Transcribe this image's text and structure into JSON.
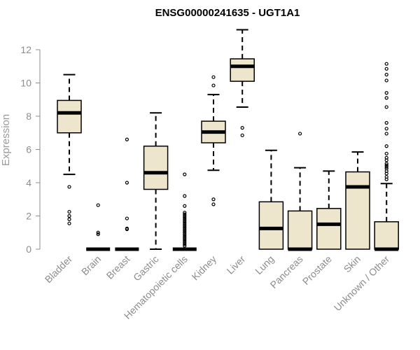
{
  "chart_data": {
    "type": "boxplot",
    "title": "ENSG00000241635 - UGT1A1",
    "xlabel": "",
    "ylabel": "Expression",
    "ylim": [
      0,
      12.6
    ],
    "yticks": [
      0,
      2,
      4,
      6,
      8,
      10,
      12
    ],
    "colors": {
      "box_fill": "#ede6cd",
      "stroke": "#000000",
      "axis": "#8c8c8c"
    },
    "categories": [
      "Bladder",
      "Brain",
      "Breast",
      "Gastric",
      "Hematopoietic cells",
      "Kidney",
      "Liver",
      "Lung",
      "Pancreas",
      "Prostate",
      "Skin",
      "Unknown / Other"
    ],
    "boxes": [
      {
        "q1": 7.0,
        "median": 8.2,
        "q3": 8.95,
        "whisker_low": 4.5,
        "whisker_high": 10.5,
        "outliers": [
          3.75,
          2.25,
          2.0,
          1.8,
          1.55
        ]
      },
      {
        "q1": 0.0,
        "median": 0.0,
        "q3": 0.0,
        "whisker_low": 0.0,
        "whisker_high": 0.0,
        "outliers": [
          2.65,
          1.0,
          0.9
        ]
      },
      {
        "q1": 0.0,
        "median": 0.0,
        "q3": 0.0,
        "whisker_low": 0.0,
        "whisker_high": 0.0,
        "outliers": [
          6.6,
          4.0,
          1.85,
          1.25,
          1.2
        ]
      },
      {
        "q1": 3.6,
        "median": 4.6,
        "q3": 6.2,
        "whisker_low": 0.0,
        "whisker_high": 8.2,
        "outliers": []
      },
      {
        "q1": 0.0,
        "median": 0.0,
        "q3": 0.0,
        "whisker_low": 0.0,
        "whisker_high": 0.0,
        "outliers": [
          4.5,
          3.2,
          2.6,
          2.2,
          2.1,
          2.0,
          1.9,
          1.8,
          1.7,
          1.6,
          1.5,
          1.4,
          1.3,
          1.2,
          1.1,
          1.0,
          0.9,
          0.8,
          0.7,
          0.6,
          0.5,
          0.4,
          0.3,
          0.2
        ]
      },
      {
        "q1": 6.4,
        "median": 7.05,
        "q3": 7.7,
        "whisker_low": 4.75,
        "whisker_high": 9.3,
        "outliers": [
          10.35,
          9.85,
          3.0,
          2.7
        ]
      },
      {
        "q1": 10.1,
        "median": 11.0,
        "q3": 11.45,
        "whisker_low": 8.55,
        "whisker_high": 13.2,
        "outliers": [
          7.3,
          6.85
        ]
      },
      {
        "q1": 0.0,
        "median": 1.25,
        "q3": 2.85,
        "whisker_low": 0.0,
        "whisker_high": 5.95,
        "outliers": []
      },
      {
        "q1": 0.0,
        "median": 0.0,
        "q3": 2.3,
        "whisker_low": 0.0,
        "whisker_high": 4.9,
        "outliers": [
          6.95
        ]
      },
      {
        "q1": 0.0,
        "median": 1.5,
        "q3": 2.45,
        "whisker_low": 0.0,
        "whisker_high": 4.7,
        "outliers": []
      },
      {
        "q1": 0.0,
        "median": 3.75,
        "q3": 4.65,
        "whisker_low": 0.0,
        "whisker_high": 5.85,
        "outliers": []
      },
      {
        "q1": 0.0,
        "median": 0.0,
        "q3": 1.65,
        "whisker_low": 0.0,
        "whisker_high": 3.95,
        "outliers": [
          11.15,
          10.85,
          10.5,
          10.15,
          9.4,
          9.1,
          8.55,
          7.6,
          7.25,
          6.95,
          6.2,
          5.75,
          5.5,
          5.35,
          5.15,
          5.05,
          4.95,
          4.85,
          4.7,
          4.55,
          4.35,
          4.2
        ]
      }
    ]
  }
}
